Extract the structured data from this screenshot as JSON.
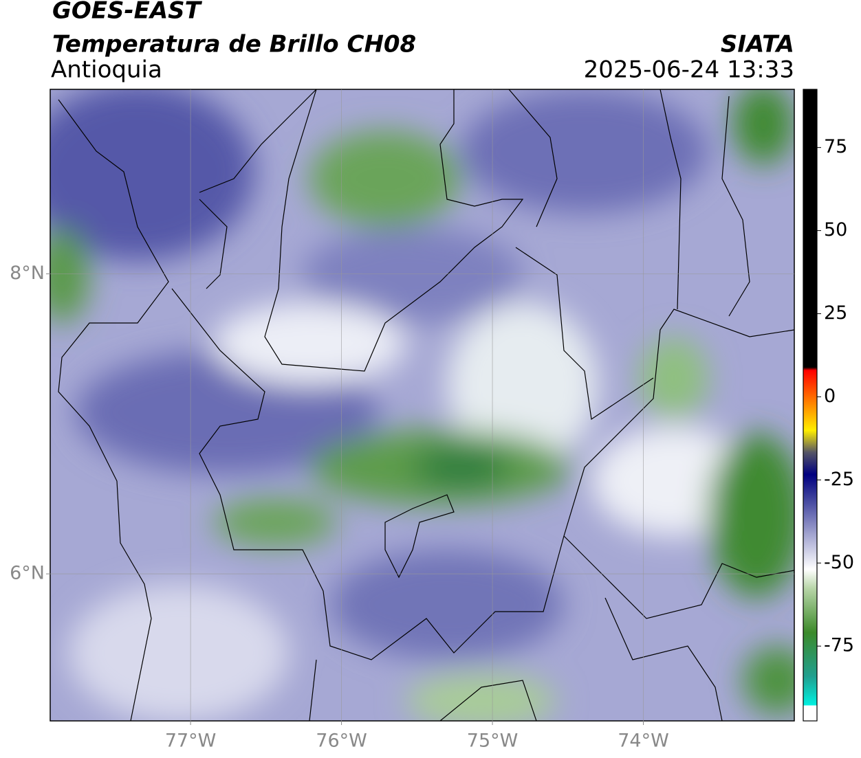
{
  "header": {
    "title": "GOES-EAST",
    "subtitle": "Temperatura de Brillo CH08",
    "region": "Antioquia",
    "source": "SIATA",
    "datetime": "2025-06-24 13:33"
  },
  "map": {
    "xlim": [
      -77.93,
      -73.0
    ],
    "ylim": [
      5.02,
      9.23
    ],
    "xticks": [
      {
        "value": -77,
        "label": "77°W"
      },
      {
        "value": -76,
        "label": "76°W"
      },
      {
        "value": -75,
        "label": "75°W"
      },
      {
        "value": -74,
        "label": "74°W"
      }
    ],
    "yticks": [
      {
        "value": 8,
        "label": "8°N"
      },
      {
        "value": 6,
        "label": "6°N"
      }
    ],
    "grid": true
  },
  "colorbar": {
    "lim": [
      -97.5,
      92.5
    ],
    "ticks": [
      75,
      50,
      25,
      0,
      -25,
      -50,
      -75
    ]
  }
}
